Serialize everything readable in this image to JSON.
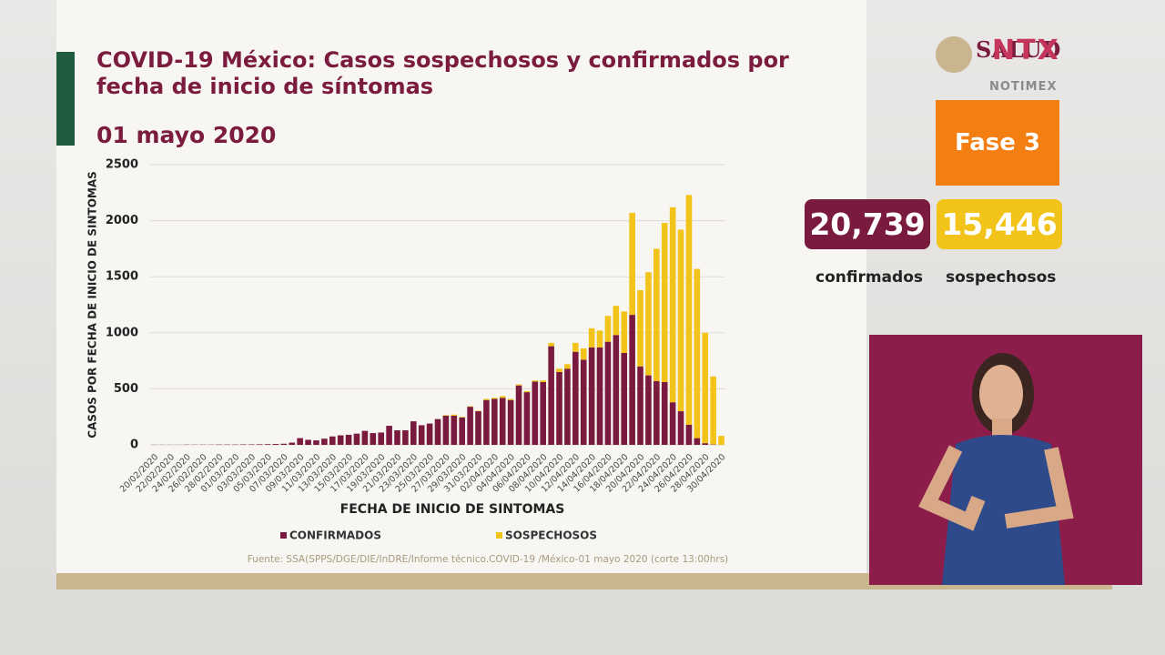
{
  "chart_data": {
    "type": "stacked_bar",
    "title": "COVID-19 México: Casos sospechosos y confirmados por fecha de inicio de síntomas",
    "subtitle": "01 mayo 2020",
    "x_label": "FECHA DE INICIO DE SINTOMAS",
    "y_label": "CASOS POR FECHA DE INICIO DE SINTOMAS",
    "source": "Fuente: SSA(SPPS/DGE/DIE/InDRE/Informe técnico.COVID-19 /México-01 mayo 2020 (corte 13:00hrs)",
    "categories": [
      "20/02/2020",
      null,
      "22/02/2020",
      null,
      "24/02/2020",
      null,
      "26/02/2020",
      null,
      "28/02/2020",
      null,
      "01/03/2020",
      null,
      "03/03/2020",
      null,
      "05/03/2020",
      null,
      "07/03/2020",
      null,
      "09/03/2020",
      null,
      "11/03/2020",
      null,
      "13/03/2020",
      null,
      "15/03/2020",
      null,
      "17/03/2020",
      null,
      "19/03/2020",
      null,
      "21/03/2020",
      null,
      "23/03/2020",
      null,
      "25/03/2020",
      null,
      "27/03/2020",
      null,
      "29/03/2020",
      null,
      "31/03/2020",
      null,
      "02/04/2020",
      null,
      "04/04/2020",
      null,
      "06/04/2020",
      null,
      "08/04/2020",
      null,
      "10/04/2020",
      null,
      "12/04/2020",
      null,
      "14/04/2020",
      null,
      "16/04/2020",
      null,
      "18/04/2020",
      null,
      "20/04/2020",
      null,
      "22/04/2020",
      null,
      "24/04/2020",
      null,
      "26/04/2020",
      null,
      "28/04/2020",
      null,
      "30/04/2020"
    ],
    "series": [
      {
        "name": "CONFIRMADOS",
        "color": "#7a1a3f",
        "values": [
          1,
          1,
          1,
          1,
          2,
          2,
          2,
          2,
          3,
          3,
          3,
          4,
          4,
          5,
          6,
          8,
          10,
          20,
          60,
          45,
          40,
          55,
          75,
          85,
          90,
          100,
          125,
          105,
          110,
          170,
          130,
          130,
          210,
          175,
          190,
          230,
          260,
          260,
          245,
          340,
          300,
          400,
          410,
          420,
          400,
          530,
          470,
          565,
          560,
          880,
          650,
          680,
          830,
          760,
          870,
          870,
          920,
          980,
          820,
          1160,
          700,
          620,
          570,
          560,
          380,
          300,
          180,
          60,
          15,
          3,
          0
        ]
      },
      {
        "name": "SOSPECHOSOS",
        "color": "#f2c318",
        "values": [
          0,
          0,
          0,
          0,
          0,
          0,
          0,
          0,
          0,
          0,
          0,
          0,
          0,
          0,
          0,
          0,
          0,
          0,
          0,
          0,
          0,
          0,
          0,
          0,
          0,
          0,
          0,
          0,
          0,
          0,
          0,
          0,
          0,
          0,
          0,
          0,
          5,
          10,
          5,
          5,
          5,
          10,
          10,
          15,
          10,
          10,
          10,
          10,
          15,
          30,
          30,
          40,
          80,
          100,
          170,
          150,
          230,
          260,
          370,
          910,
          680,
          920,
          1180,
          1420,
          1740,
          1620,
          2050,
          1510,
          985,
          607,
          80
        ]
      }
    ],
    "ylim": [
      0,
      2500
    ],
    "yticks": [
      0,
      500,
      1000,
      1500,
      2000,
      2500
    ],
    "grid": true
  },
  "header": {
    "logo": "SALUD",
    "channel": "NTX",
    "channel_sub": "NOTIMEX"
  },
  "stats": {
    "phase": "Fase 3",
    "confirmed": "20,739",
    "confirmed_label": "confirmados",
    "suspected": "15,446",
    "suspected_label": "sospechosos"
  }
}
